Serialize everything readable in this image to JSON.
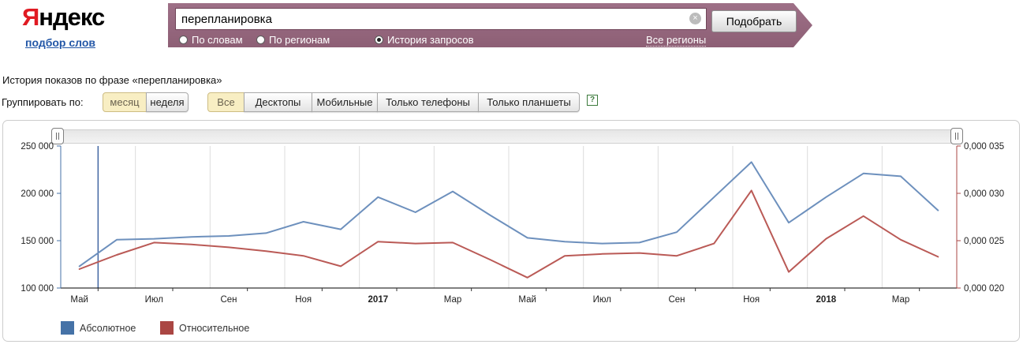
{
  "header": {
    "logo": {
      "ya": "Я",
      "rest": "ндекс"
    },
    "logo_link": "подбор слов",
    "search": {
      "value": "перепланировка",
      "clear_icon": "×"
    },
    "submit_label": "Подобрать",
    "modes": [
      {
        "label": "По словам",
        "selected": false
      },
      {
        "label": "По регионам",
        "selected": false
      },
      {
        "label": "История запросов",
        "selected": true
      }
    ],
    "regions_link": "Все регионы",
    "bar_color": "#96687c"
  },
  "page": {
    "title": "История показов по фразе «перепланировка»",
    "groupby_label": "Группировать по:",
    "group_options": [
      {
        "label": "месяц",
        "selected": true
      },
      {
        "label": "неделя",
        "selected": false
      }
    ],
    "device_tabs": [
      {
        "label": "Все",
        "selected": true
      },
      {
        "label": "Десктопы",
        "selected": false
      },
      {
        "label": "Мобильные",
        "selected": false
      },
      {
        "label": "Только телефоны",
        "selected": false
      },
      {
        "label": "Только планшеты",
        "selected": false
      }
    ],
    "help_icon": "?"
  },
  "chart_data": {
    "type": "line",
    "categories": [
      "Май 2016",
      "Июн 2016",
      "Июл 2016",
      "Авг 2016",
      "Сен 2016",
      "Окт 2016",
      "Ноя 2016",
      "Дек 2016",
      "Янв 2017",
      "Фев 2017",
      "Мар 2017",
      "Апр 2017",
      "Май 2017",
      "Июн 2017",
      "Июл 2017",
      "Авг 2017",
      "Сен 2017",
      "Окт 2017",
      "Ноя 2017",
      "Дек 2017",
      "Янв 2018",
      "Фев 2018",
      "Мар 2018",
      "Апр 2018"
    ],
    "x_tick_labels": [
      {
        "text": "Май",
        "bold": false
      },
      {
        "text": "Июл",
        "bold": false
      },
      {
        "text": "Сен",
        "bold": false
      },
      {
        "text": "Ноя",
        "bold": false
      },
      {
        "text": "2017",
        "bold": true
      },
      {
        "text": "Мар",
        "bold": false
      },
      {
        "text": "Май",
        "bold": false
      },
      {
        "text": "Июл",
        "bold": false
      },
      {
        "text": "Сен",
        "bold": false
      },
      {
        "text": "Ноя",
        "bold": false
      },
      {
        "text": "2018",
        "bold": true
      },
      {
        "text": "Мар",
        "bold": false
      }
    ],
    "series": [
      {
        "name": "Абсолютное",
        "swatch_color": "#4572a7",
        "line_color": "#6d90bd",
        "values": [
          123000,
          151000,
          152000,
          154000,
          155000,
          158000,
          170000,
          162000,
          196000,
          180000,
          202000,
          177000,
          153000,
          149000,
          147000,
          148000,
          159000,
          196000,
          233000,
          169000,
          196000,
          221000,
          218000,
          182000
        ]
      },
      {
        "name": "Относительное",
        "swatch_color": "#aa4643",
        "line_color": "#ba5a56",
        "unit_scale": "1e-6",
        "values": [
          22.0,
          23.5,
          24.8,
          24.6,
          24.3,
          23.9,
          23.4,
          22.3,
          24.9,
          24.7,
          24.8,
          23.0,
          21.1,
          23.4,
          23.6,
          23.7,
          23.4,
          24.7,
          30.3,
          21.7,
          25.2,
          27.6,
          25.1,
          23.3
        ]
      }
    ],
    "left_axis": {
      "labels": [
        "250 000",
        "200 000",
        "150 000",
        "100 000"
      ],
      "min": 100000,
      "max": 250000,
      "color": "#4572a7"
    },
    "right_axis": {
      "labels": [
        "0,000 035",
        "0,000 030",
        "0,000 025",
        "0,000 020"
      ],
      "min": 2e-05,
      "max": 3.5e-05,
      "color": "#aa4643"
    },
    "grid": "vertical-only",
    "legend_position": "bottom-left",
    "selection_boundary_index": 1,
    "selection_line_color": "#3a5f9e"
  }
}
